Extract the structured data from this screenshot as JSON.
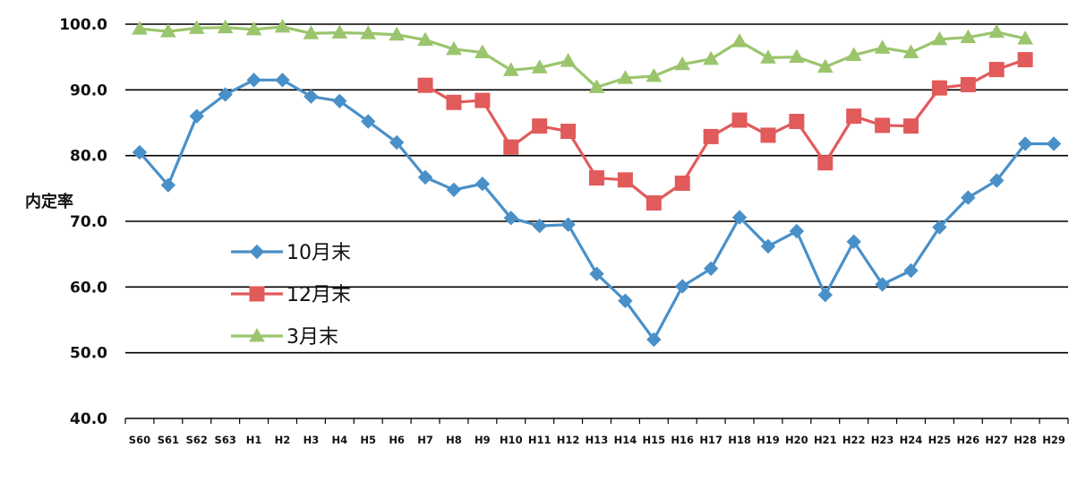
{
  "chart_data": {
    "type": "line",
    "title": "",
    "xlabel": "",
    "ylabel": "内定率",
    "ylim": [
      40,
      100
    ],
    "yticks": [
      "40.0",
      "50.0",
      "60.0",
      "70.0",
      "80.0",
      "90.0",
      "100.0"
    ],
    "grid": "horizontal",
    "legend_position": "left-middle",
    "categories": [
      "S60",
      "S61",
      "S62",
      "S63",
      "H1",
      "H2",
      "H3",
      "H4",
      "H5",
      "H6",
      "H7",
      "H8",
      "H9",
      "H10",
      "H11",
      "H12",
      "H13",
      "H14",
      "H15",
      "H16",
      "H17",
      "H18",
      "H19",
      "H20",
      "H21",
      "H22",
      "H23",
      "H24",
      "H25",
      "H26",
      "H27",
      "H28",
      "H29"
    ],
    "series": [
      {
        "name": "10月末",
        "color": "#4a90c8",
        "marker": "diamond",
        "values": [
          80.5,
          75.5,
          86.0,
          89.3,
          91.5,
          91.5,
          89.0,
          88.3,
          85.2,
          82.0,
          76.7,
          74.8,
          75.7,
          70.5,
          69.3,
          69.5,
          62.0,
          57.9,
          52.0,
          60.1,
          62.8,
          70.6,
          66.2,
          68.5,
          58.8,
          66.9,
          60.4,
          62.5,
          69.1,
          73.6,
          76.2,
          81.8,
          81.8
        ]
      },
      {
        "name": "12月末",
        "color": "#e15b5b",
        "marker": "square",
        "values": [
          null,
          null,
          null,
          null,
          null,
          null,
          null,
          null,
          null,
          null,
          90.7,
          88.1,
          88.4,
          81.3,
          84.5,
          83.7,
          76.6,
          76.3,
          72.8,
          75.8,
          82.9,
          85.4,
          83.1,
          85.2,
          78.9,
          86.0,
          84.6,
          84.5,
          90.3,
          90.8,
          93.1,
          94.6,
          null
        ]
      },
      {
        "name": "3月末",
        "color": "#9bc56d",
        "marker": "triangle",
        "values": [
          99.3,
          98.9,
          99.4,
          99.5,
          99.2,
          99.6,
          98.6,
          98.7,
          98.6,
          98.4,
          97.6,
          96.2,
          95.7,
          93.0,
          93.4,
          94.4,
          90.4,
          91.8,
          92.1,
          93.9,
          94.7,
          97.4,
          94.9,
          95.0,
          93.5,
          95.3,
          96.4,
          95.7,
          97.7,
          98.0,
          98.8,
          97.8,
          null
        ]
      }
    ]
  }
}
